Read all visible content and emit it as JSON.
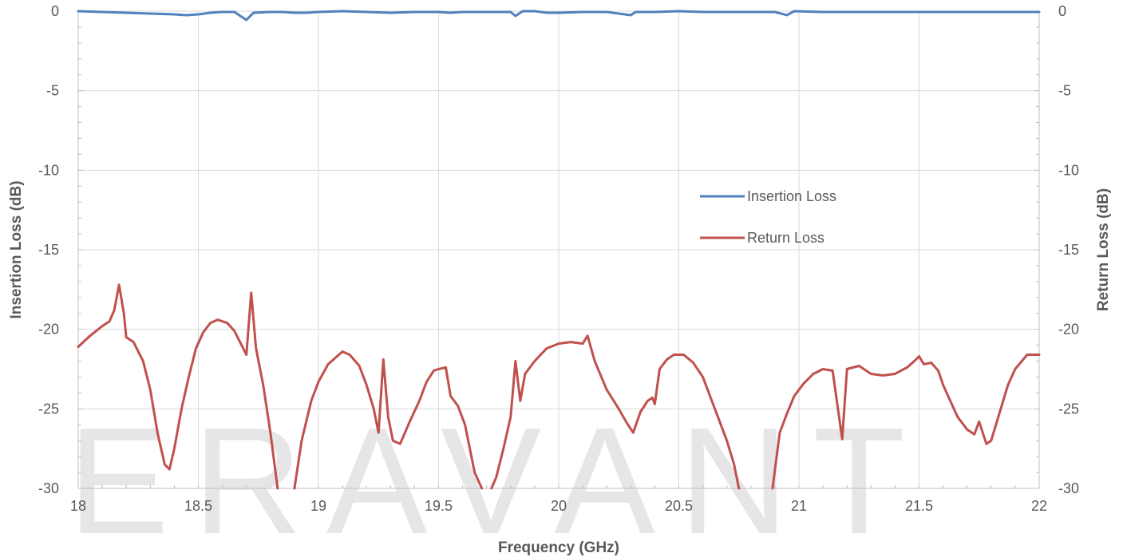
{
  "chart_data": {
    "type": "line",
    "title": "",
    "xlabel": "Frequency (GHz)",
    "ylabel_left": "Insertion Loss (dB)",
    "ylabel_right": "Return Loss (dB)",
    "xlim": [
      18,
      22
    ],
    "ylim": [
      -30,
      0
    ],
    "x_ticks": [
      18,
      18.5,
      19,
      19.5,
      20,
      20.5,
      21,
      21.5,
      22
    ],
    "x_tick_labels": [
      "18",
      "18.5",
      "19",
      "19.5",
      "20",
      "20.5",
      "21",
      "21.5",
      "22"
    ],
    "y_ticks": [
      0,
      -5,
      -10,
      -15,
      -20,
      -25,
      -30
    ],
    "y_tick_labels": [
      "0",
      "-5",
      "-10",
      "-15",
      "-20",
      "-25",
      "-30"
    ],
    "grid": true,
    "legend_position": "center-right",
    "watermark": "ERAVANT",
    "series": [
      {
        "name": "Insertion Loss",
        "axis": "left",
        "color": "#4f81bd",
        "points": [
          [
            18.0,
            0.0
          ],
          [
            18.1,
            -0.05
          ],
          [
            18.2,
            -0.1
          ],
          [
            18.3,
            -0.15
          ],
          [
            18.4,
            -0.2
          ],
          [
            18.45,
            -0.25
          ],
          [
            18.5,
            -0.2
          ],
          [
            18.55,
            -0.1
          ],
          [
            18.6,
            -0.05
          ],
          [
            18.65,
            -0.05
          ],
          [
            18.7,
            -0.55
          ],
          [
            18.73,
            -0.1
          ],
          [
            18.8,
            -0.05
          ],
          [
            18.85,
            -0.05
          ],
          [
            18.9,
            -0.1
          ],
          [
            18.95,
            -0.1
          ],
          [
            19.0,
            -0.05
          ],
          [
            19.1,
            0.0
          ],
          [
            19.2,
            -0.05
          ],
          [
            19.3,
            -0.1
          ],
          [
            19.4,
            -0.05
          ],
          [
            19.5,
            -0.05
          ],
          [
            19.55,
            -0.1
          ],
          [
            19.6,
            -0.05
          ],
          [
            19.7,
            -0.05
          ],
          [
            19.8,
            -0.05
          ],
          [
            19.82,
            -0.3
          ],
          [
            19.85,
            0.0
          ],
          [
            19.9,
            0.0
          ],
          [
            19.95,
            -0.1
          ],
          [
            20.0,
            -0.1
          ],
          [
            20.1,
            -0.05
          ],
          [
            20.2,
            -0.05
          ],
          [
            20.3,
            -0.25
          ],
          [
            20.32,
            -0.05
          ],
          [
            20.4,
            -0.05
          ],
          [
            20.5,
            0.0
          ],
          [
            20.6,
            -0.05
          ],
          [
            20.7,
            -0.05
          ],
          [
            20.8,
            -0.05
          ],
          [
            20.9,
            -0.05
          ],
          [
            20.95,
            -0.25
          ],
          [
            20.98,
            0.0
          ],
          [
            21.1,
            -0.05
          ],
          [
            21.3,
            -0.05
          ],
          [
            21.5,
            -0.05
          ],
          [
            21.7,
            -0.05
          ],
          [
            21.9,
            -0.05
          ],
          [
            22.0,
            -0.05
          ]
        ]
      },
      {
        "name": "Return Loss",
        "axis": "right",
        "color": "#c0504d",
        "points": [
          [
            18.0,
            -21.1
          ],
          [
            18.05,
            -20.4
          ],
          [
            18.1,
            -19.8
          ],
          [
            18.13,
            -19.5
          ],
          [
            18.15,
            -18.8
          ],
          [
            18.17,
            -17.2
          ],
          [
            18.19,
            -19.0
          ],
          [
            18.2,
            -20.5
          ],
          [
            18.23,
            -20.8
          ],
          [
            18.27,
            -22.0
          ],
          [
            18.3,
            -23.8
          ],
          [
            18.33,
            -26.5
          ],
          [
            18.36,
            -28.5
          ],
          [
            18.38,
            -28.8
          ],
          [
            18.4,
            -27.5
          ],
          [
            18.43,
            -25.0
          ],
          [
            18.46,
            -23.0
          ],
          [
            18.49,
            -21.2
          ],
          [
            18.52,
            -20.2
          ],
          [
            18.55,
            -19.6
          ],
          [
            18.58,
            -19.4
          ],
          [
            18.62,
            -19.6
          ],
          [
            18.65,
            -20.1
          ],
          [
            18.68,
            -21.0
          ],
          [
            18.7,
            -21.6
          ],
          [
            18.72,
            -17.7
          ],
          [
            18.74,
            -21.2
          ],
          [
            18.77,
            -23.5
          ],
          [
            18.8,
            -26.5
          ],
          [
            18.83,
            -30.0
          ],
          null,
          [
            18.9,
            -30.0
          ],
          [
            18.93,
            -27.0
          ],
          [
            18.97,
            -24.5
          ],
          [
            19.0,
            -23.3
          ],
          [
            19.04,
            -22.2
          ],
          [
            19.07,
            -21.8
          ],
          [
            19.1,
            -21.4
          ],
          [
            19.13,
            -21.6
          ],
          [
            19.17,
            -22.3
          ],
          [
            19.2,
            -23.5
          ],
          [
            19.23,
            -25.0
          ],
          [
            19.25,
            -26.5
          ],
          [
            19.27,
            -21.9
          ],
          [
            19.29,
            -25.5
          ],
          [
            19.31,
            -27.0
          ],
          [
            19.34,
            -27.2
          ],
          [
            19.38,
            -25.8
          ],
          [
            19.42,
            -24.5
          ],
          [
            19.45,
            -23.3
          ],
          [
            19.48,
            -22.6
          ],
          [
            19.5,
            -22.5
          ],
          [
            19.53,
            -22.4
          ],
          [
            19.55,
            -24.2
          ],
          [
            19.58,
            -24.8
          ],
          [
            19.61,
            -26.0
          ],
          [
            19.63,
            -27.5
          ],
          [
            19.65,
            -29.0
          ],
          [
            19.68,
            -30.0
          ],
          null,
          [
            19.72,
            -30.0
          ],
          [
            19.74,
            -29.3
          ],
          [
            19.77,
            -27.5
          ],
          [
            19.8,
            -25.5
          ],
          [
            19.82,
            -22.0
          ],
          [
            19.84,
            -24.5
          ],
          [
            19.86,
            -22.8
          ],
          [
            19.9,
            -22.0
          ],
          [
            19.95,
            -21.2
          ],
          [
            20.0,
            -20.9
          ],
          [
            20.05,
            -20.8
          ],
          [
            20.1,
            -20.9
          ],
          [
            20.12,
            -20.4
          ],
          [
            20.15,
            -22.0
          ],
          [
            20.2,
            -23.8
          ],
          [
            20.25,
            -25.0
          ],
          [
            20.28,
            -25.8
          ],
          [
            20.31,
            -26.5
          ],
          [
            20.34,
            -25.2
          ],
          [
            20.37,
            -24.5
          ],
          [
            20.39,
            -24.3
          ],
          [
            20.4,
            -24.7
          ],
          [
            20.42,
            -22.5
          ],
          [
            20.45,
            -21.9
          ],
          [
            20.48,
            -21.6
          ],
          [
            20.52,
            -21.6
          ],
          [
            20.56,
            -22.1
          ],
          [
            20.6,
            -23.0
          ],
          [
            20.65,
            -25.0
          ],
          [
            20.7,
            -27.0
          ],
          [
            20.73,
            -28.5
          ],
          [
            20.75,
            -30.0
          ],
          null,
          [
            20.89,
            -30.0
          ],
          [
            20.92,
            -26.5
          ],
          [
            20.95,
            -25.3
          ],
          [
            20.98,
            -24.2
          ],
          [
            21.02,
            -23.4
          ],
          [
            21.06,
            -22.8
          ],
          [
            21.1,
            -22.5
          ],
          [
            21.14,
            -22.6
          ],
          [
            21.18,
            -26.9
          ],
          [
            21.2,
            -22.5
          ],
          [
            21.25,
            -22.3
          ],
          [
            21.3,
            -22.8
          ],
          [
            21.35,
            -22.9
          ],
          [
            21.4,
            -22.8
          ],
          [
            21.45,
            -22.4
          ],
          [
            21.48,
            -22.0
          ],
          [
            21.5,
            -21.7
          ],
          [
            21.52,
            -22.2
          ],
          [
            21.55,
            -22.1
          ],
          [
            21.58,
            -22.6
          ],
          [
            21.6,
            -23.5
          ],
          [
            21.63,
            -24.5
          ],
          [
            21.66,
            -25.5
          ],
          [
            21.7,
            -26.3
          ],
          [
            21.73,
            -26.6
          ],
          [
            21.75,
            -25.8
          ],
          [
            21.78,
            -27.2
          ],
          [
            21.8,
            -27.0
          ],
          [
            21.83,
            -25.5
          ],
          [
            21.87,
            -23.5
          ],
          [
            21.9,
            -22.5
          ],
          [
            21.95,
            -21.6
          ],
          [
            22.0,
            -21.6
          ]
        ]
      }
    ]
  }
}
